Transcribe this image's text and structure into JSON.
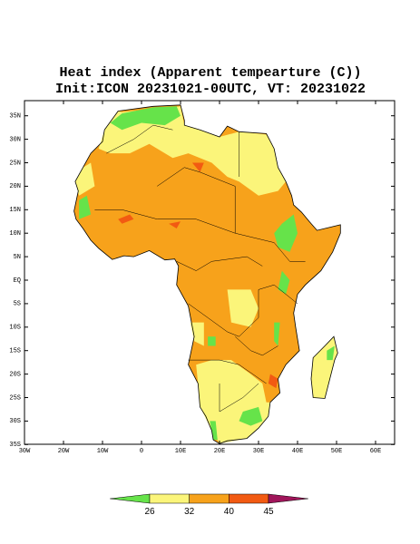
{
  "title": "Heat index (Apparent tempearture (C))",
  "subtitle": "Init:ICON 20231021-00UTC, VT: 20231022",
  "map": {
    "lat_ticks": [
      {
        "value": 35,
        "label": "35N"
      },
      {
        "value": 30,
        "label": "30N"
      },
      {
        "value": 25,
        "label": "25N"
      },
      {
        "value": 20,
        "label": "20N"
      },
      {
        "value": 15,
        "label": "15N"
      },
      {
        "value": 10,
        "label": "10N"
      },
      {
        "value": 5,
        "label": "5N"
      },
      {
        "value": 0,
        "label": "EQ"
      },
      {
        "value": -5,
        "label": "5S"
      },
      {
        "value": -10,
        "label": "10S"
      },
      {
        "value": -15,
        "label": "15S"
      },
      {
        "value": -20,
        "label": "20S"
      },
      {
        "value": -25,
        "label": "25S"
      },
      {
        "value": -30,
        "label": "30S"
      },
      {
        "value": -35,
        "label": "35S"
      }
    ],
    "lon_ticks": [
      {
        "value": -30,
        "label": "30W"
      },
      {
        "value": -20,
        "label": "20W"
      },
      {
        "value": -10,
        "label": "10W"
      },
      {
        "value": 0,
        "label": "0"
      },
      {
        "value": 10,
        "label": "10E"
      },
      {
        "value": 20,
        "label": "20E"
      },
      {
        "value": 30,
        "label": "30E"
      },
      {
        "value": 40,
        "label": "40E"
      },
      {
        "value": 50,
        "label": "50E"
      },
      {
        "value": 60,
        "label": "60E"
      }
    ]
  },
  "colorbar": {
    "levels": [
      26,
      32,
      40,
      45
    ],
    "colors": [
      "#66e34a",
      "#fbf57a",
      "#f7a21b",
      "#f25a12",
      "#a0155a"
    ]
  }
}
